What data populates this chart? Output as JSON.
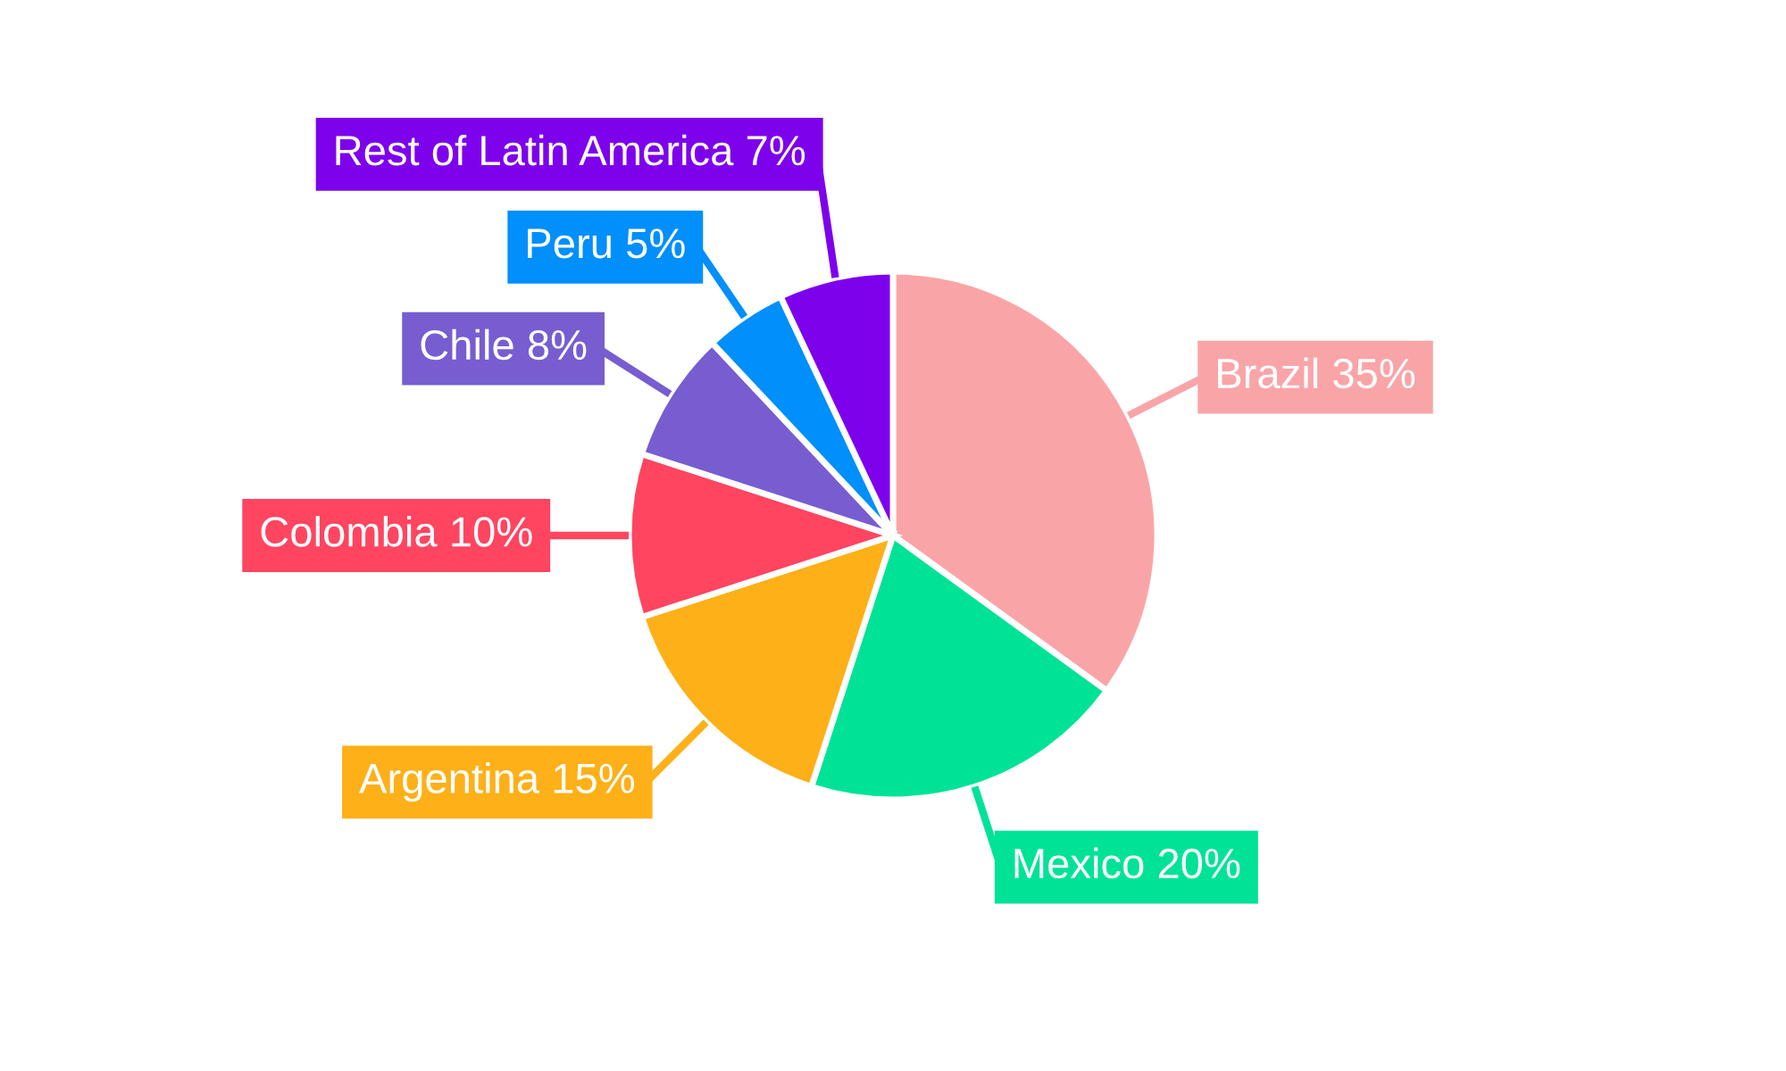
{
  "chart_data": {
    "type": "pie",
    "categories": [
      "Brazil",
      "Mexico",
      "Argentina",
      "Colombia",
      "Chile",
      "Peru",
      "Rest of Latin America"
    ],
    "values": [
      35,
      20,
      15,
      10,
      8,
      5,
      7
    ],
    "value_labels": [
      "35%",
      "20%",
      "15%",
      "10%",
      "8%",
      "5%",
      "7%"
    ],
    "colors": [
      "#f9a5a8",
      "#00e396",
      "#feb019",
      "#ff4560",
      "#775dd0",
      "#008ffb",
      "#7d02eb"
    ],
    "legend": false
  }
}
